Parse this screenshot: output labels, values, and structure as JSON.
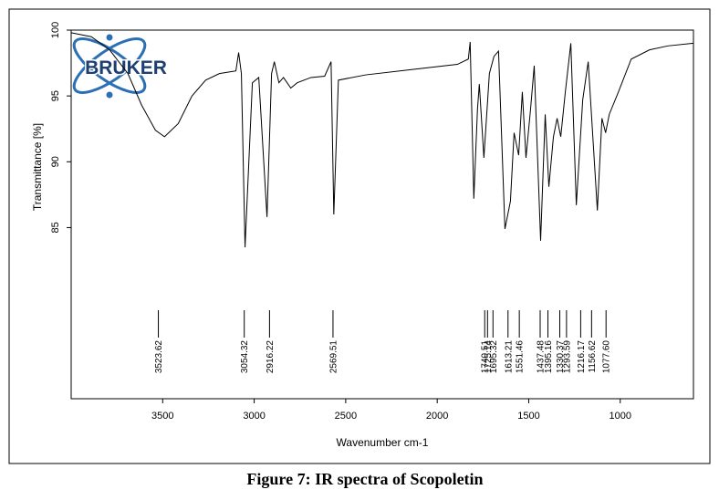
{
  "chart_data": {
    "type": "line",
    "logo_text": "BRUKER",
    "y_label": "Transmittance [%]",
    "x_label": "Wavenumber cm-1",
    "caption": "Figure 7: IR spectra of Scopoletin",
    "xlim": [
      4000,
      600
    ],
    "ylim": [
      72,
      100
    ],
    "xticks": [
      3500,
      3000,
      2500,
      2000,
      1500,
      1000
    ],
    "yticks": [
      100,
      95,
      90,
      85
    ],
    "color": "#000000",
    "series": [
      {
        "name": "Scopoletin",
        "color": "#000000",
        "x": [
          4000,
          3890,
          3790,
          3690,
          3615,
          3540,
          3490,
          3415,
          3340,
          3265,
          3190,
          3100,
          3085,
          3070,
          3050,
          3010,
          2975,
          2930,
          2905,
          2890,
          2865,
          2840,
          2800,
          2765,
          2690,
          2615,
          2580,
          2565,
          2540,
          2390,
          2140,
          1890,
          1830,
          1820,
          1800,
          1780,
          1770,
          1745,
          1715,
          1690,
          1665,
          1630,
          1600,
          1580,
          1555,
          1535,
          1515,
          1490,
          1470,
          1435,
          1410,
          1390,
          1365,
          1345,
          1325,
          1300,
          1270,
          1240,
          1205,
          1175,
          1125,
          1100,
          1080,
          1060,
          1010,
          940,
          840,
          740,
          600
        ],
        "values": [
          99.8,
          99.5,
          98.5,
          96.7,
          94.3,
          92.4,
          91.9,
          92.9,
          95.0,
          96.2,
          96.7,
          96.9,
          98.3,
          96.7,
          83.5,
          96.0,
          96.4,
          85.8,
          96.7,
          97.6,
          96.0,
          96.4,
          95.6,
          96.0,
          96.4,
          96.5,
          97.6,
          86.0,
          96.2,
          96.6,
          97.0,
          97.4,
          97.8,
          99.1,
          87.2,
          94.0,
          95.9,
          90.3,
          96.7,
          98.0,
          98.4,
          84.9,
          87.0,
          92.2,
          90.5,
          95.3,
          90.3,
          94.0,
          97.3,
          84.0,
          93.6,
          88.1,
          91.9,
          93.3,
          91.9,
          95.3,
          99.0,
          86.7,
          94.7,
          97.6,
          86.3,
          93.3,
          92.2,
          93.6,
          95.3,
          97.8,
          98.5,
          98.8,
          99.0
        ]
      }
    ],
    "peak_labels": [
      3523.62,
      3054.32,
      2916.22,
      2569.51,
      1740.51,
      1725.14,
      1695.32,
      1613.21,
      1551.46,
      1437.48,
      1395.16,
      1330.37,
      1293.59,
      1216.17,
      1156.62,
      {
        "value": 1077.6,
        "label": "1077.60"
      }
    ]
  }
}
